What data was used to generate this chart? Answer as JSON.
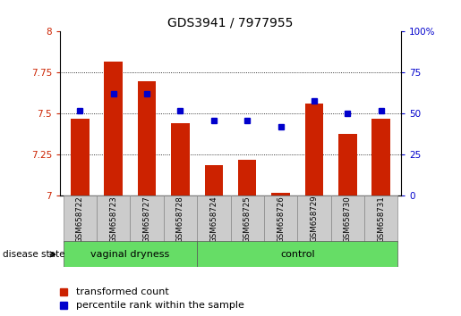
{
  "title": "GDS3941 / 7977955",
  "samples": [
    "GSM658722",
    "GSM658723",
    "GSM658727",
    "GSM658728",
    "GSM658724",
    "GSM658725",
    "GSM658726",
    "GSM658729",
    "GSM658730",
    "GSM658731"
  ],
  "red_values": [
    7.47,
    7.82,
    7.7,
    7.44,
    7.19,
    7.22,
    7.02,
    7.56,
    7.38,
    7.47
  ],
  "blue_values": [
    52,
    62,
    62,
    52,
    46,
    46,
    42,
    58,
    50,
    52
  ],
  "ylim_left": [
    7.0,
    8.0
  ],
  "ylim_right": [
    0,
    100
  ],
  "yticks_left": [
    7.0,
    7.25,
    7.5,
    7.75,
    8.0
  ],
  "yticks_right": [
    0,
    25,
    50,
    75,
    100
  ],
  "group1_label": "vaginal dryness",
  "group2_label": "control",
  "group1_count": 4,
  "group2_count": 6,
  "bar_color": "#cc2200",
  "dot_color": "#0000cc",
  "group_color": "#66dd66",
  "disease_state_label": "disease state",
  "legend_red": "transformed count",
  "legend_blue": "percentile rank within the sample",
  "tick_area_bg": "#cccccc",
  "title_fontsize": 10,
  "label_fontsize": 7,
  "tick_fontsize": 7.5
}
